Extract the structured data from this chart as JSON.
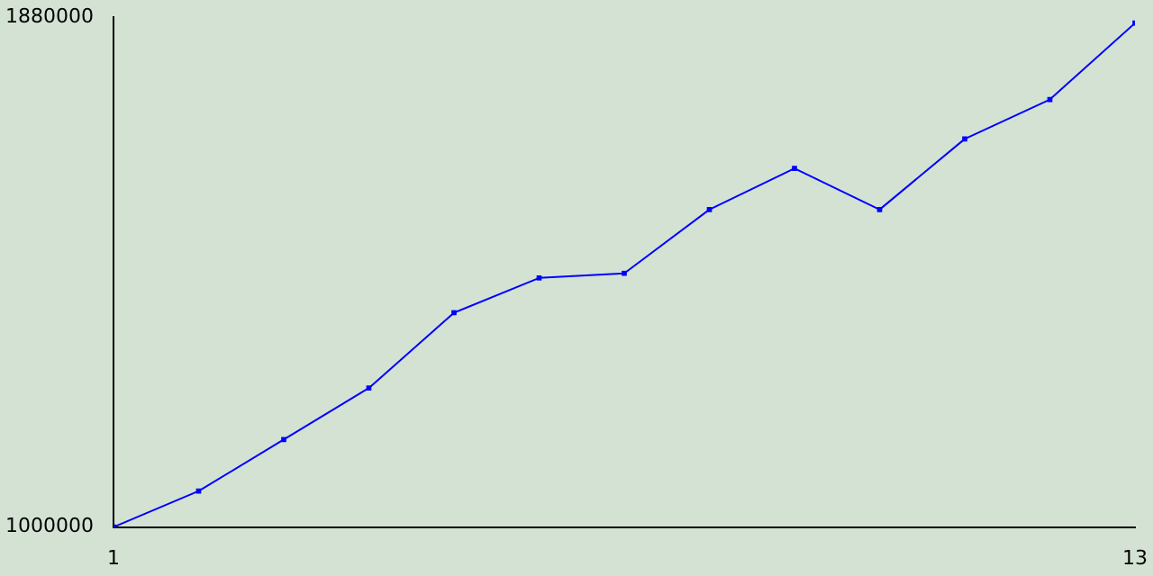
{
  "chart_data": {
    "type": "line",
    "x": [
      1,
      2,
      3,
      4,
      5,
      6,
      7,
      8,
      9,
      10,
      11,
      12,
      13
    ],
    "series": [
      {
        "color": "#0000ff",
        "values": [
          1000000,
          1062000,
          1151000,
          1240000,
          1370000,
          1430000,
          1438000,
          1548000,
          1619000,
          1548000,
          1670000,
          1738000,
          1870000
        ]
      }
    ],
    "xlim": [
      1,
      13
    ],
    "xticks": [
      1,
      13
    ],
    "ylim": [
      1000000,
      1880000
    ],
    "yticks": [
      1000000,
      1880000
    ],
    "grid": false,
    "legend": false,
    "marker": "square",
    "line_style": "solid"
  }
}
